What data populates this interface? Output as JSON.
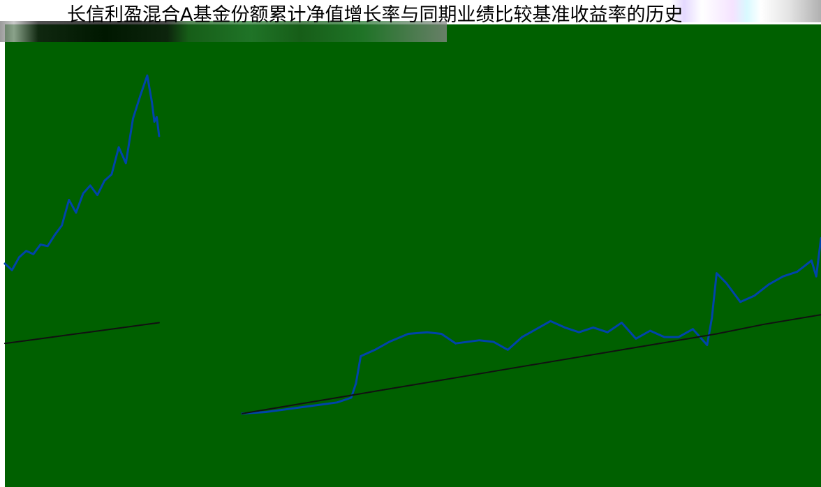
{
  "title": "长信利盈混合A基金份额累计净值增长率与同期业绩比较基准收益率的历史走",
  "colors": {
    "plot_background": "#006000",
    "fund_line": "#0044aa",
    "benchmark_line": "#111111"
  },
  "chart_data": {
    "type": "line",
    "title": "长信利盈混合A基金份额累计净值增长率与同期业绩比较基准收益率的历史走",
    "xlabel": "",
    "ylabel": "",
    "grid": false,
    "legend": "none",
    "series": [
      {
        "values": [
          [
            0,
            0.7
          ],
          [
            1.5,
            0.66
          ],
          [
            3,
            0.74
          ],
          [
            4.5,
            0.78
          ],
          [
            6,
            0.76
          ],
          [
            7.5,
            0.82
          ],
          [
            9,
            0.81
          ],
          [
            10.5,
            0.88
          ],
          [
            12,
            0.94
          ],
          [
            13.5,
            1.1
          ],
          [
            15,
            1.02
          ],
          [
            16.5,
            1.14
          ],
          [
            18,
            1.19
          ],
          [
            19.5,
            1.13
          ],
          [
            21,
            1.22
          ],
          [
            22.5,
            1.26
          ],
          [
            24,
            1.43
          ],
          [
            25.5,
            1.33
          ],
          [
            27,
            1.61
          ],
          [
            28.5,
            1.75
          ],
          [
            30,
            1.88
          ],
          [
            31,
            1.71
          ],
          [
            31.5,
            1.59
          ],
          [
            32,
            1.62
          ],
          [
            32.5,
            1.5
          ]
        ]
      },
      {
        "values": [
          [
            0,
            0.2
          ],
          [
            5,
            0.22
          ],
          [
            10,
            0.24
          ],
          [
            15,
            0.26
          ],
          [
            20,
            0.28
          ],
          [
            25,
            0.3
          ],
          [
            30,
            0.32
          ],
          [
            32.5,
            0.33
          ]
        ]
      },
      {
        "values": [
          [
            50,
            -0.24
          ],
          [
            55,
            -0.23
          ],
          [
            60,
            -0.21
          ],
          [
            65,
            -0.19
          ],
          [
            70,
            -0.17
          ],
          [
            73,
            -0.14
          ],
          [
            74,
            -0.05
          ],
          [
            75,
            0.12
          ],
          [
            78,
            0.16
          ],
          [
            81,
            0.21
          ],
          [
            85,
            0.26
          ],
          [
            89,
            0.27
          ],
          [
            92,
            0.26
          ],
          [
            95,
            0.2
          ],
          [
            100,
            0.22
          ],
          [
            103,
            0.21
          ],
          [
            106,
            0.16
          ],
          [
            109,
            0.24
          ],
          [
            112,
            0.29
          ],
          [
            115,
            0.34
          ],
          [
            118,
            0.3
          ],
          [
            121,
            0.27
          ],
          [
            124,
            0.3
          ],
          [
            127,
            0.27
          ],
          [
            130,
            0.33
          ],
          [
            133,
            0.23
          ],
          [
            136,
            0.28
          ],
          [
            139,
            0.24
          ],
          [
            142,
            0.24
          ],
          [
            145,
            0.29
          ],
          [
            148,
            0.19
          ],
          [
            149,
            0.36
          ],
          [
            150,
            0.64
          ],
          [
            152,
            0.58
          ],
          [
            155,
            0.46
          ],
          [
            158,
            0.5
          ],
          [
            161,
            0.57
          ],
          [
            164,
            0.62
          ],
          [
            167,
            0.65
          ],
          [
            170,
            0.72
          ],
          [
            171,
            0.62
          ],
          [
            172,
            0.86
          ]
        ]
      },
      {
        "values": [
          [
            50,
            -0.24
          ],
          [
            60,
            -0.19
          ],
          [
            70,
            -0.14
          ],
          [
            80,
            -0.09
          ],
          [
            90,
            -0.04
          ],
          [
            100,
            0.01
          ],
          [
            110,
            0.06
          ],
          [
            120,
            0.11
          ],
          [
            130,
            0.16
          ],
          [
            140,
            0.21
          ],
          [
            150,
            0.26
          ],
          [
            160,
            0.32
          ],
          [
            172,
            0.38
          ]
        ]
      }
    ],
    "xlim": [
      0,
      172
    ],
    "ylim": [
      -0.7,
      2.2
    ]
  }
}
